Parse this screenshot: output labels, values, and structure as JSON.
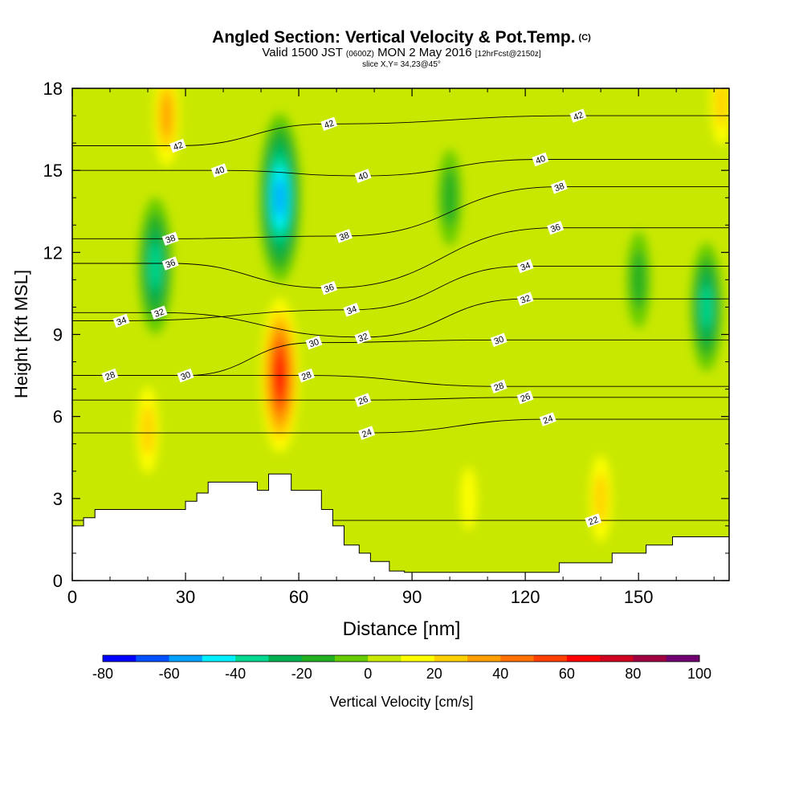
{
  "header": {
    "title": "Angled Section: Vertical Velocity & Pot.Temp.",
    "title_mark": "(C)",
    "subtitle_valid": "Valid 1500 JST",
    "subtitle_utc": "(0600Z)",
    "subtitle_date": "MON 2 May 2016",
    "subtitle_fcst": "[12hrFcst@2150z]",
    "slice": "slice X,Y= 34,23@45°"
  },
  "chart_data": {
    "type": "heatmap",
    "xlabel": "Distance [nm]",
    "ylabel": "Height [Kft MSL]",
    "xlim": [
      0,
      174
    ],
    "ylim": [
      0,
      18
    ],
    "x_ticks": [
      0,
      30,
      60,
      90,
      120,
      150
    ],
    "y_ticks": [
      0,
      3,
      6,
      9,
      12,
      15,
      18
    ],
    "colorbar": {
      "label": "Vertical Velocity [cm/s]",
      "ticks": [
        -80,
        -60,
        -40,
        -20,
        0,
        20,
        40,
        60,
        80,
        100
      ],
      "levels": [
        -80,
        -70,
        -60,
        -50,
        -40,
        -30,
        -20,
        -10,
        0,
        10,
        20,
        30,
        40,
        50,
        60,
        70,
        80,
        90,
        100
      ],
      "colors": [
        "#0000ff",
        "#0050ff",
        "#00a0ff",
        "#00f0ff",
        "#00d890",
        "#00b050",
        "#22b022",
        "#66cc00",
        "#c8e800",
        "#ffff00",
        "#ffd000",
        "#ffa000",
        "#ff7000",
        "#ff4000",
        "#ff0000",
        "#d00020",
        "#a00040",
        "#700070"
      ]
    },
    "velocity_features": [
      {
        "x": 22,
        "y": 11.5,
        "value": -45
      },
      {
        "x": 55,
        "y": 14.0,
        "value": -65
      },
      {
        "x": 55,
        "y": 7.5,
        "value": 70
      },
      {
        "x": 25,
        "y": 17.0,
        "value": 40
      },
      {
        "x": 20,
        "y": 5.5,
        "value": 35
      },
      {
        "x": 168,
        "y": 10.0,
        "value": -40
      },
      {
        "x": 150,
        "y": 11.0,
        "value": -20
      },
      {
        "x": 100,
        "y": 14.0,
        "value": -20
      },
      {
        "x": 172,
        "y": 17.5,
        "value": 35
      },
      {
        "x": 140,
        "y": 3.0,
        "value": 35
      },
      {
        "x": 105,
        "y": 3.0,
        "value": 25
      }
    ],
    "theta_contours": [
      {
        "label": "22",
        "label_pos": [
          138,
          2.2
        ]
      },
      {
        "label": "24",
        "label_pos": [
          78,
          5.4
        ]
      },
      {
        "label": "24",
        "label_pos": [
          126,
          5.9
        ]
      },
      {
        "label": "26",
        "label_pos": [
          77,
          6.6
        ]
      },
      {
        "label": "26",
        "label_pos": [
          120,
          6.7
        ]
      },
      {
        "label": "28",
        "label_pos": [
          10,
          7.5
        ]
      },
      {
        "label": "28",
        "label_pos": [
          62,
          7.5
        ]
      },
      {
        "label": "28",
        "label_pos": [
          113,
          7.1
        ]
      },
      {
        "label": "30",
        "label_pos": [
          30,
          7.5
        ]
      },
      {
        "label": "30",
        "label_pos": [
          64,
          8.7
        ]
      },
      {
        "label": "30",
        "label_pos": [
          113,
          8.8
        ]
      },
      {
        "label": "32",
        "label_pos": [
          23,
          9.8
        ]
      },
      {
        "label": "32",
        "label_pos": [
          77,
          8.9
        ]
      },
      {
        "label": "32",
        "label_pos": [
          120,
          10.3
        ]
      },
      {
        "label": "34",
        "label_pos": [
          13,
          9.5
        ]
      },
      {
        "label": "34",
        "label_pos": [
          74,
          9.9
        ]
      },
      {
        "label": "34",
        "label_pos": [
          120,
          11.5
        ]
      },
      {
        "label": "36",
        "label_pos": [
          26,
          11.6
        ]
      },
      {
        "label": "36",
        "label_pos": [
          68,
          10.7
        ]
      },
      {
        "label": "36",
        "label_pos": [
          128,
          12.9
        ]
      },
      {
        "label": "38",
        "label_pos": [
          26,
          12.5
        ]
      },
      {
        "label": "38",
        "label_pos": [
          72,
          12.6
        ]
      },
      {
        "label": "38",
        "label_pos": [
          129,
          14.4
        ]
      },
      {
        "label": "40",
        "label_pos": [
          39,
          15.0
        ]
      },
      {
        "label": "40",
        "label_pos": [
          77,
          14.8
        ]
      },
      {
        "label": "40",
        "label_pos": [
          124,
          15.4
        ]
      },
      {
        "label": "42",
        "label_pos": [
          28,
          15.9
        ]
      },
      {
        "label": "42",
        "label_pos": [
          68,
          16.7
        ]
      },
      {
        "label": "42",
        "label_pos": [
          134,
          17.0
        ]
      }
    ],
    "terrain": [
      [
        0,
        2.0
      ],
      [
        3,
        2.0
      ],
      [
        3,
        2.3
      ],
      [
        6,
        2.3
      ],
      [
        6,
        2.6
      ],
      [
        30,
        2.6
      ],
      [
        30,
        2.9
      ],
      [
        33,
        2.9
      ],
      [
        33,
        3.2
      ],
      [
        36,
        3.2
      ],
      [
        36,
        3.6
      ],
      [
        49,
        3.6
      ],
      [
        49,
        3.3
      ],
      [
        52,
        3.3
      ],
      [
        52,
        3.9
      ],
      [
        58,
        3.9
      ],
      [
        58,
        3.3
      ],
      [
        66,
        3.3
      ],
      [
        66,
        2.6
      ],
      [
        69,
        2.6
      ],
      [
        69,
        2.0
      ],
      [
        72,
        2.0
      ],
      [
        72,
        1.3
      ],
      [
        76,
        1.3
      ],
      [
        76,
        1.0
      ],
      [
        79,
        1.0
      ],
      [
        79,
        0.7
      ],
      [
        84,
        0.7
      ],
      [
        84,
        0.35
      ],
      [
        88,
        0.35
      ],
      [
        88,
        0.3
      ],
      [
        129,
        0.3
      ],
      [
        129,
        0.65
      ],
      [
        143,
        0.65
      ],
      [
        143,
        1.0
      ],
      [
        152,
        1.0
      ],
      [
        152,
        1.3
      ],
      [
        159,
        1.3
      ],
      [
        159,
        1.6
      ],
      [
        174,
        1.6
      ]
    ]
  }
}
